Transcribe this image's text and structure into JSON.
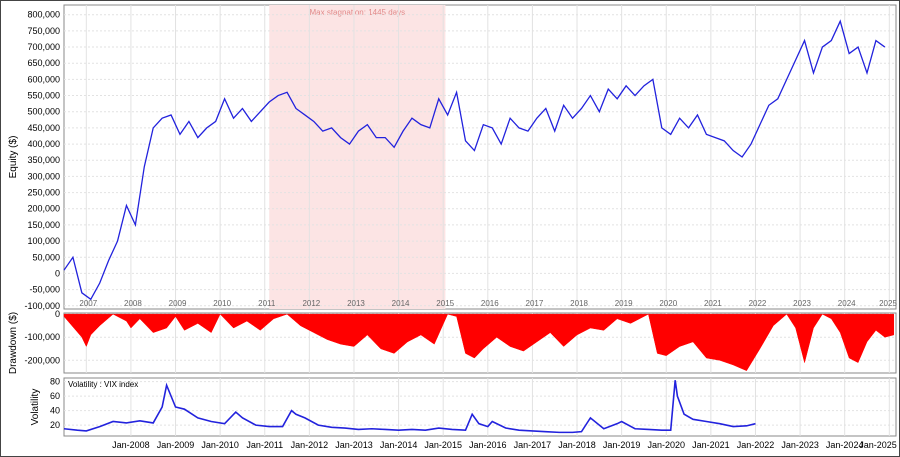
{
  "chart_data": [
    {
      "type": "line",
      "ylabel": "Equity ($)",
      "ylim": [
        -110000,
        830000
      ],
      "yticks": [
        800000,
        750000,
        700000,
        650000,
        600000,
        550000,
        500000,
        450000,
        400000,
        350000,
        300000,
        250000,
        200000,
        150000,
        100000,
        50000,
        0,
        -50000,
        -100000
      ],
      "ytick_labels": [
        "800,000",
        "750,000",
        "700,000",
        "650,000",
        "600,000",
        "550,000",
        "500,000",
        "450,000",
        "400,000",
        "350,000",
        "300,000",
        "250,000",
        "200,000",
        "150,000",
        "100,000",
        "50,000",
        "0",
        "-50,000",
        "-100,000"
      ],
      "year_labels": [
        "2007",
        "2008",
        "2009",
        "2010",
        "2011",
        "2012",
        "2013",
        "2014",
        "2015",
        "2016",
        "2017",
        "2018",
        "2019",
        "2020",
        "2021",
        "2022",
        "2023",
        "2024",
        "2025"
      ],
      "annotation": {
        "text": "Max stagnation: 1445 days",
        "start": 2011.1,
        "end": 2015.05
      },
      "line_color": "#2222dd",
      "highlight_color": "#fce4e4",
      "series": [
        {
          "x": [
            2006.5,
            2006.7,
            2006.9,
            2007.1,
            2007.3,
            2007.5,
            2007.7,
            2007.9,
            2008.1,
            2008.3,
            2008.5,
            2008.7,
            2008.9,
            2009.1,
            2009.3,
            2009.5,
            2009.7,
            2009.9,
            2010.1,
            2010.3,
            2010.5,
            2010.7,
            2010.9,
            2011.1,
            2011.3,
            2011.5,
            2011.7,
            2011.9,
            2012.1,
            2012.3,
            2012.5,
            2012.7,
            2012.9,
            2013.1,
            2013.3,
            2013.5,
            2013.7,
            2013.9,
            2014.1,
            2014.3,
            2014.5,
            2014.7,
            2014.9,
            2015.1,
            2015.3,
            2015.5,
            2015.7,
            2015.9,
            2016.1,
            2016.3,
            2016.5,
            2016.7,
            2016.9,
            2017.1,
            2017.3,
            2017.5,
            2017.7,
            2017.9,
            2018.1,
            2018.3,
            2018.5,
            2018.7,
            2018.9,
            2019.1,
            2019.3,
            2019.5,
            2019.7,
            2019.9,
            2020.1,
            2020.3,
            2020.5,
            2020.7,
            2020.9,
            2021.1,
            2021.3,
            2021.5,
            2021.7,
            2021.9,
            2022.1,
            2022.3,
            2022.5,
            2022.7,
            2022.9,
            2023.1,
            2023.3,
            2023.5,
            2023.7,
            2023.9,
            2024.1,
            2024.3,
            2024.5,
            2024.7,
            2024.9
          ],
          "y": [
            10000,
            50000,
            -60000,
            -80000,
            -30000,
            40000,
            100000,
            210000,
            150000,
            330000,
            450000,
            480000,
            490000,
            430000,
            470000,
            420000,
            450000,
            470000,
            540000,
            480000,
            510000,
            470000,
            500000,
            530000,
            550000,
            560000,
            510000,
            490000,
            470000,
            440000,
            450000,
            420000,
            400000,
            440000,
            460000,
            420000,
            420000,
            390000,
            440000,
            480000,
            460000,
            450000,
            540000,
            490000,
            560000,
            410000,
            380000,
            460000,
            450000,
            400000,
            480000,
            450000,
            440000,
            480000,
            510000,
            440000,
            520000,
            480000,
            510000,
            550000,
            500000,
            570000,
            540000,
            580000,
            550000,
            580000,
            600000,
            450000,
            430000,
            480000,
            450000,
            490000,
            430000,
            420000,
            410000,
            380000,
            360000,
            400000,
            460000,
            520000,
            540000,
            600000,
            660000,
            720000,
            620000,
            700000,
            720000,
            780000,
            680000,
            700000,
            620000,
            720000,
            700000
          ]
        }
      ]
    },
    {
      "type": "area",
      "ylabel": "Drawdown ($)",
      "ylim": [
        -255000,
        5000
      ],
      "yticks": [
        0,
        -100000,
        -200000
      ],
      "ytick_labels": [
        "0",
        "-100,000",
        "-200,000"
      ],
      "fill_color": "#ff0000",
      "series": [
        {
          "x": [
            2006.5,
            2006.9,
            2007.0,
            2007.1,
            2007.3,
            2007.6,
            2007.9,
            2008.0,
            2008.2,
            2008.5,
            2008.8,
            2009.0,
            2009.2,
            2009.5,
            2009.8,
            2010.0,
            2010.3,
            2010.6,
            2010.9,
            2011.2,
            2011.5,
            2011.8,
            2012.1,
            2012.4,
            2012.7,
            2013.0,
            2013.3,
            2013.6,
            2013.9,
            2014.2,
            2014.5,
            2014.8,
            2015.1,
            2015.3,
            2015.5,
            2015.7,
            2015.9,
            2016.2,
            2016.5,
            2016.8,
            2017.1,
            2017.4,
            2017.7,
            2018.0,
            2018.3,
            2018.6,
            2018.9,
            2019.2,
            2019.4,
            2019.6,
            2019.8,
            2020.0,
            2020.3,
            2020.6,
            2020.9,
            2021.2,
            2021.5,
            2021.8,
            2022.1,
            2022.4,
            2022.7,
            2022.9,
            2023.1,
            2023.3,
            2023.5,
            2023.7,
            2023.9,
            2024.1,
            2024.3,
            2024.5,
            2024.7,
            2024.9,
            2025.1
          ],
          "y": [
            -10000,
            -100000,
            -140000,
            -90000,
            -50000,
            0,
            -30000,
            -60000,
            -20000,
            -80000,
            -60000,
            -10000,
            -70000,
            -40000,
            -80000,
            0,
            -60000,
            -30000,
            -70000,
            -20000,
            0,
            -50000,
            -80000,
            -110000,
            -130000,
            -140000,
            -90000,
            -150000,
            -170000,
            -120000,
            -90000,
            -130000,
            0,
            -10000,
            -170000,
            -190000,
            -150000,
            -100000,
            -140000,
            -160000,
            -120000,
            -80000,
            -140000,
            -90000,
            -60000,
            -70000,
            -20000,
            -40000,
            -20000,
            0,
            -170000,
            -180000,
            -140000,
            -120000,
            -190000,
            -200000,
            -220000,
            -245000,
            -150000,
            -50000,
            0,
            -60000,
            -210000,
            -60000,
            0,
            -20000,
            -80000,
            -190000,
            -210000,
            -120000,
            -70000,
            -100000,
            -90000
          ]
        }
      ]
    },
    {
      "type": "line",
      "ylabel": "Volatility",
      "legend": "Volatility : VIX index",
      "ylim": [
        5,
        85
      ],
      "yticks": [
        80,
        60,
        40,
        20
      ],
      "ytick_labels": [
        "80",
        "60",
        "40",
        "20"
      ],
      "xticks": [
        "Jan-2008",
        "Jan-2009",
        "Jan-2010",
        "Jan-2011",
        "Jan-2012",
        "Jan-2013",
        "Jan-2014",
        "Jan-2015",
        "Jan-2016",
        "Jan-2017",
        "Jan-2018",
        "Jan-2019",
        "Jan-2020",
        "Jan-2021",
        "Jan-2022",
        "Jan-2023",
        "Jan-2024",
        "Jan-2025"
      ],
      "line_color": "#2222dd",
      "series": [
        {
          "x": [
            2006.5,
            2006.8,
            2007.0,
            2007.3,
            2007.6,
            2007.9,
            2008.2,
            2008.5,
            2008.7,
            2008.8,
            2008.9,
            2009.0,
            2009.2,
            2009.5,
            2009.8,
            2010.1,
            2010.35,
            2010.5,
            2010.8,
            2011.1,
            2011.4,
            2011.6,
            2011.7,
            2011.9,
            2012.2,
            2012.5,
            2012.8,
            2013.1,
            2013.4,
            2013.7,
            2014.0,
            2014.3,
            2014.6,
            2014.9,
            2015.2,
            2015.5,
            2015.65,
            2015.8,
            2016.0,
            2016.1,
            2016.4,
            2016.7,
            2017.0,
            2017.3,
            2017.6,
            2017.9,
            2018.1,
            2018.3,
            2018.6,
            2018.9,
            2019.0,
            2019.3,
            2019.6,
            2019.9,
            2020.1,
            2020.2,
            2020.25,
            2020.4,
            2020.6,
            2020.9,
            2021.2,
            2021.5,
            2021.8,
            2022.0
          ],
          "y": [
            15,
            13,
            12,
            18,
            25,
            23,
            26,
            23,
            45,
            75,
            60,
            45,
            42,
            30,
            25,
            22,
            38,
            30,
            20,
            18,
            18,
            40,
            35,
            30,
            20,
            17,
            16,
            14,
            15,
            14,
            13,
            14,
            13,
            16,
            14,
            13,
            35,
            22,
            18,
            25,
            16,
            13,
            12,
            11,
            10,
            10,
            11,
            30,
            15,
            22,
            25,
            15,
            14,
            13,
            13,
            82,
            60,
            35,
            28,
            25,
            22,
            18,
            19,
            22
          ]
        }
      ]
    }
  ]
}
